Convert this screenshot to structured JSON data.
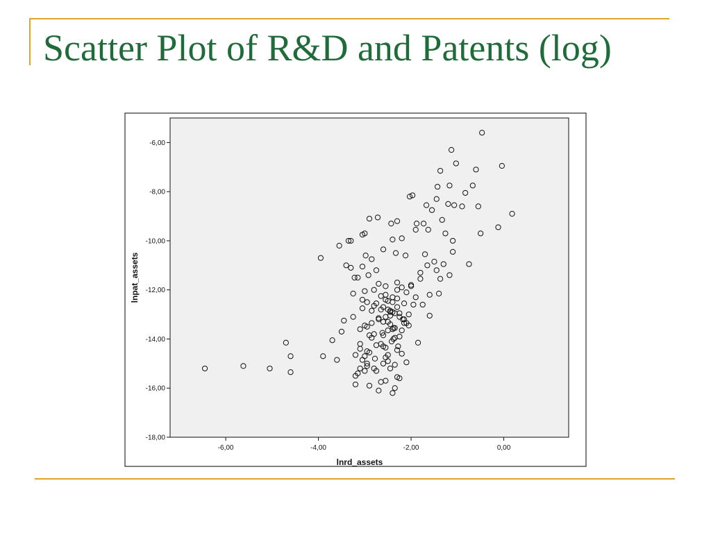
{
  "slide": {
    "title": "Scatter Plot of R&D and Patents (log)",
    "title_color": "#1f6b3a",
    "rule_color": "#e0a42a"
  },
  "chart_data": {
    "type": "scatter",
    "xlabel": "lnrd_assets",
    "ylabel": "lnpat_assets",
    "xlim": [
      -7.2,
      1.4
    ],
    "ylim": [
      -18,
      -5
    ],
    "x_ticks": [
      -6,
      -4,
      -2,
      0
    ],
    "y_ticks": [
      -18,
      -16,
      -14,
      -12,
      -10,
      -8,
      -6
    ],
    "x_tick_labels": [
      "-6,00",
      "-4,00",
      "-2,00",
      "0,00"
    ],
    "y_tick_labels": [
      "-18,00",
      "-16,00",
      "-14,00",
      "-12,00",
      "-10,00",
      "-8,00",
      "-6,00"
    ],
    "grid": false,
    "plot_background": "#f0f0f0",
    "marker": "hollow circle",
    "x": [
      -0.47,
      -1.13,
      -0.04,
      -1.03,
      -1.37,
      -0.6,
      -1.17,
      -1.43,
      -0.67,
      -0.83,
      -1.2,
      -1.07,
      -1.45,
      -1.67,
      -1.97,
      -2.03,
      -0.9,
      -0.55,
      0.18,
      -1.55,
      -1.33,
      -0.12,
      -1.73,
      -1.88,
      -2.3,
      -2.43,
      -2.72,
      -2.9,
      -3.0,
      -3.05,
      -1.26,
      -1.63,
      -1.9,
      -0.5,
      -1.1,
      -2.2,
      -2.4,
      -3.3,
      -3.55,
      -3.95,
      -2.6,
      -0.75,
      -1.5,
      -1.65,
      -2.33,
      -2.12,
      -2.85,
      -2.98,
      -1.37,
      -1.17,
      -2.92,
      -3.22,
      -3.4,
      -3.05,
      -2.75,
      -2.55,
      -1.8,
      -2.0,
      -1.4,
      -2.8,
      -2.4,
      -2.3,
      -1.6,
      -2.65,
      -2.15,
      -1.95,
      -2.6,
      -2.5,
      -2.4,
      -2.25,
      -2.05,
      -2.18,
      -2.5,
      -2.1,
      -2.45,
      -2.35,
      -2.2,
      -2.55,
      -2.7,
      -2.62,
      -2.8,
      -2.95,
      -3.0,
      -2.38,
      -2.25,
      -2.42,
      -2.28,
      -2.65,
      -2.6,
      -2.3,
      -3.1,
      -2.9,
      -2.2,
      -2.5,
      -1.85,
      -2.78,
      -3.05,
      -2.55,
      -2.6,
      -2.1,
      -2.35,
      -2.95,
      -3.1,
      -3.0,
      -2.45,
      -2.75,
      -3.15,
      -3.2,
      -2.3,
      -2.55,
      -3.2,
      -2.9,
      -2.35,
      -2.7,
      -2.4,
      -2.25,
      -2.65,
      -2.8,
      -2.95,
      -3.0,
      -2.55,
      -2.5,
      -3.1,
      -2.85,
      -2.4,
      -2.6,
      -2.35,
      -2.45,
      -2.8,
      -2.95,
      -3.05,
      -2.65,
      -2.1,
      -2.2,
      -2.3,
      -2.7,
      -3.0,
      -2.3,
      -2.5,
      -2.75,
      -2.85,
      -3.25,
      -3.45,
      -3.5,
      -3.7,
      -3.9,
      -4.7,
      -4.6,
      -4.6,
      -5.05,
      -5.62,
      -6.45,
      -3.6,
      -3.2,
      -2.95,
      -2.75,
      -2.38,
      -2.9,
      -3.1,
      -2.6,
      -2.5,
      -2.35,
      -2.05,
      -2.15,
      -2.25,
      -2.3,
      -2.4,
      -2.55,
      -1.9,
      -1.75,
      -2.45,
      -2.15,
      -3.35,
      -3.3,
      -3.15,
      -3.25,
      -3.05,
      -2.85,
      -2.7,
      -2.55,
      -2.45,
      -1.6,
      -1.8,
      -1.45,
      -1.3,
      -1.1,
      -2.0,
      -1.7
    ],
    "y": [
      -5.6,
      -6.3,
      -6.95,
      -6.85,
      -7.15,
      -7.1,
      -7.75,
      -7.8,
      -7.75,
      -8.05,
      -8.5,
      -8.55,
      -8.3,
      -8.55,
      -8.15,
      -8.2,
      -8.6,
      -8.6,
      -8.9,
      -8.75,
      -9.15,
      -9.45,
      -9.3,
      -9.3,
      -9.2,
      -9.3,
      -9.05,
      -9.1,
      -9.7,
      -9.75,
      -9.7,
      -9.55,
      -9.55,
      -9.7,
      -10.0,
      -9.9,
      -9.95,
      -10.0,
      -10.2,
      -10.7,
      -10.35,
      -10.95,
      -10.85,
      -11.0,
      -10.5,
      -10.6,
      -10.75,
      -10.6,
      -11.55,
      -11.4,
      -11.4,
      -11.5,
      -11.0,
      -11.05,
      -11.2,
      -11.85,
      -11.3,
      -11.8,
      -12.15,
      -12.0,
      -12.3,
      -12.0,
      -12.2,
      -12.25,
      -12.55,
      -12.6,
      -12.7,
      -12.8,
      -12.9,
      -13.1,
      -13.0,
      -13.2,
      -13.3,
      -13.35,
      -13.4,
      -13.55,
      -13.65,
      -13.1,
      -13.2,
      -13.75,
      -13.8,
      -13.5,
      -13.45,
      -14.0,
      -13.9,
      -14.1,
      -14.3,
      -14.2,
      -14.3,
      -14.45,
      -14.4,
      -14.55,
      -14.6,
      -14.65,
      -14.15,
      -14.8,
      -14.85,
      -14.75,
      -15.0,
      -14.95,
      -15.05,
      -15.1,
      -15.2,
      -15.3,
      -15.2,
      -15.3,
      -15.4,
      -15.5,
      -15.55,
      -15.7,
      -15.85,
      -15.9,
      -16.0,
      -16.1,
      -16.2,
      -15.6,
      -15.75,
      -15.2,
      -15.0,
      -14.7,
      -14.35,
      -14.9,
      -14.2,
      -13.95,
      -13.6,
      -13.3,
      -12.95,
      -12.85,
      -12.65,
      -12.5,
      -12.4,
      -12.8,
      -12.1,
      -11.9,
      -11.7,
      -11.75,
      -12.05,
      -12.35,
      -12.45,
      -12.55,
      -12.85,
      -13.1,
      -13.25,
      -13.7,
      -14.05,
      -14.7,
      -14.15,
      -14.7,
      -15.35,
      -15.2,
      -15.1,
      -15.2,
      -14.85,
      -14.65,
      -14.5,
      -14.25,
      -13.55,
      -13.85,
      -13.6,
      -13.85,
      -13.65,
      -13.95,
      -13.45,
      -13.2,
      -12.95,
      -12.7,
      -12.5,
      -12.2,
      -12.3,
      -12.6,
      -13.05,
      -13.35,
      -10.0,
      -11.1,
      -11.5,
      -12.15,
      -12.75,
      -13.35,
      -13.15,
      -12.4,
      -12.9,
      -13.05,
      -11.55,
      -11.2,
      -10.95,
      -10.45,
      -11.85,
      -10.55
    ]
  }
}
